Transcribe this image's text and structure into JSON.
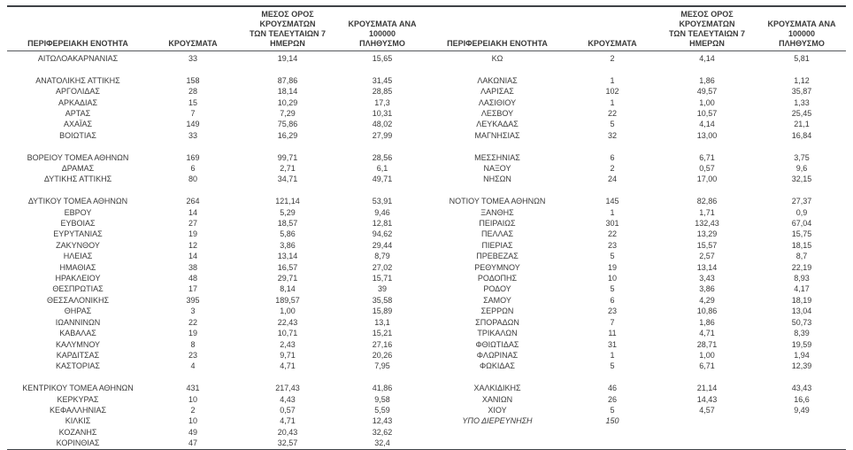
{
  "page": {
    "background": "#ffffff",
    "text_color": "#3a3a3a",
    "border_color": "#3f4247"
  },
  "table": {
    "headers": {
      "region": "ΠΕΡΙΦΕΡΕΙΑΚΗ ΕΝΟΤΗΤΑ",
      "cases": "ΚΡΟΥΣΜΑΤΑ",
      "avg7": "ΜΕΣΟΣ ΟΡΟΣ ΚΡΟΥΣΜΑΤΩΝ\nΤΩΝ ΤΕΛΕΥΤΑΙΩΝ 7\nΗΜΕΡΩΝ",
      "per100k": "ΚΡΟΥΣΜΑΤΑ ΑΝΑ 100000\nΠΛΗΘΥΣΜΟ"
    },
    "rows": [
      {
        "l": [
          "ΑΙΤΩΛΟΑΚΑΡΝΑΝΙΑΣ",
          "33",
          "19,14",
          "15,65"
        ],
        "r": [
          "ΚΩ",
          "2",
          "4,14",
          "5,81"
        ]
      },
      {
        "l": null,
        "r": null
      },
      {
        "l": [
          "ΑΝΑΤΟΛΙΚΗΣ ΑΤΤΙΚΗΣ",
          "158",
          "87,86",
          "31,45"
        ],
        "r": [
          "ΛΑΚΩΝΙΑΣ",
          "1",
          "1,86",
          "1,12"
        ]
      },
      {
        "l": [
          "ΑΡΓΟΛΙΔΑΣ",
          "28",
          "18,14",
          "28,85"
        ],
        "r": [
          "ΛΑΡΙΣΑΣ",
          "102",
          "49,57",
          "35,87"
        ]
      },
      {
        "l": [
          "ΑΡΚΑΔΙΑΣ",
          "15",
          "10,29",
          "17,3"
        ],
        "r": [
          "ΛΑΣΙΘΙΟΥ",
          "1",
          "1,00",
          "1,33"
        ]
      },
      {
        "l": [
          "ΑΡΤΑΣ",
          "7",
          "7,29",
          "10,31"
        ],
        "r": [
          "ΛΕΣΒΟΥ",
          "22",
          "10,57",
          "25,45"
        ]
      },
      {
        "l": [
          "ΑΧΑΪΑΣ",
          "149",
          "75,86",
          "48,02"
        ],
        "r": [
          "ΛΕΥΚΑΔΑΣ",
          "5",
          "4,14",
          "21,1"
        ]
      },
      {
        "l": [
          "ΒΟΙΩΤΙΑΣ",
          "33",
          "16,29",
          "27,99"
        ],
        "r": [
          "ΜΑΓΝΗΣΙΑΣ",
          "32",
          "13,00",
          "16,84"
        ]
      },
      {
        "l": null,
        "r": null
      },
      {
        "l": [
          "ΒΟΡΕΙΟΥ ΤΟΜΕΑ ΑΘΗΝΩΝ",
          "169",
          "99,71",
          "28,56"
        ],
        "r": [
          "ΜΕΣΣΗΝΙΑΣ",
          "6",
          "6,71",
          "3,75"
        ]
      },
      {
        "l": [
          "ΔΡΑΜΑΣ",
          "6",
          "2,71",
          "6,1"
        ],
        "r": [
          "ΝΑΞΟΥ",
          "2",
          "0,57",
          "9,6"
        ]
      },
      {
        "l": [
          "ΔΥΤΙΚΗΣ ΑΤΤΙΚΗΣ",
          "80",
          "34,71",
          "49,71"
        ],
        "r": [
          "ΝΗΣΩΝ",
          "24",
          "17,00",
          "32,15"
        ]
      },
      {
        "l": null,
        "r": null
      },
      {
        "l": [
          "ΔΥΤΙΚΟΥ ΤΟΜΕΑ ΑΘΗΝΩΝ",
          "264",
          "121,14",
          "53,91"
        ],
        "r": [
          "ΝΟΤΙΟΥ ΤΟΜΕΑ ΑΘΗΝΩΝ",
          "145",
          "82,86",
          "27,37"
        ]
      },
      {
        "l": [
          "ΕΒΡΟΥ",
          "14",
          "5,29",
          "9,46"
        ],
        "r": [
          "ΞΑΝΘΗΣ",
          "1",
          "1,71",
          "0,9"
        ]
      },
      {
        "l": [
          "ΕΥΒΟΙΑΣ",
          "27",
          "18,57",
          "12,81"
        ],
        "r": [
          "ΠΕΙΡΑΙΩΣ",
          "301",
          "132,43",
          "67,04"
        ]
      },
      {
        "l": [
          "ΕΥΡΥΤΑΝΙΑΣ",
          "19",
          "5,86",
          "94,62"
        ],
        "r": [
          "ΠΕΛΛΑΣ",
          "22",
          "13,29",
          "15,75"
        ]
      },
      {
        "l": [
          "ΖΑΚΥΝΘΟΥ",
          "12",
          "3,86",
          "29,44"
        ],
        "r": [
          "ΠΙΕΡΙΑΣ",
          "23",
          "15,57",
          "18,15"
        ]
      },
      {
        "l": [
          "ΗΛΕΙΑΣ",
          "14",
          "13,14",
          "8,79"
        ],
        "r": [
          "ΠΡΕΒΕΖΑΣ",
          "5",
          "2,57",
          "8,7"
        ]
      },
      {
        "l": [
          "ΗΜΑΘΙΑΣ",
          "38",
          "16,57",
          "27,02"
        ],
        "r": [
          "ΡΕΘΥΜΝΟΥ",
          "19",
          "13,14",
          "22,19"
        ]
      },
      {
        "l": [
          "ΗΡΑΚΛΕΙΟΥ",
          "48",
          "29,71",
          "15,71"
        ],
        "r": [
          "ΡΟΔΟΠΗΣ",
          "10",
          "3,43",
          "8,93"
        ]
      },
      {
        "l": [
          "ΘΕΣΠΡΩΤΙΑΣ",
          "17",
          "8,14",
          "39"
        ],
        "r": [
          "ΡΟΔΟΥ",
          "5",
          "3,86",
          "4,17"
        ]
      },
      {
        "l": [
          "ΘΕΣΣΑΛΟΝΙΚΗΣ",
          "395",
          "189,57",
          "35,58"
        ],
        "r": [
          "ΣΑΜΟΥ",
          "6",
          "4,29",
          "18,19"
        ]
      },
      {
        "l": [
          "ΘΗΡΑΣ",
          "3",
          "1,00",
          "15,89"
        ],
        "r": [
          "ΣΕΡΡΩΝ",
          "23",
          "10,86",
          "13,04"
        ]
      },
      {
        "l": [
          "ΙΩΑΝΝΙΝΩΝ",
          "22",
          "22,43",
          "13,1"
        ],
        "r": [
          "ΣΠΟΡΑΔΩΝ",
          "7",
          "1,86",
          "50,73"
        ]
      },
      {
        "l": [
          "ΚΑΒΑΛΑΣ",
          "19",
          "10,71",
          "15,21"
        ],
        "r": [
          "ΤΡΙΚΑΛΩΝ",
          "11",
          "4,71",
          "8,39"
        ]
      },
      {
        "l": [
          "ΚΑΛΥΜΝΟΥ",
          "8",
          "2,43",
          "27,16"
        ],
        "r": [
          "ΦΘΙΩΤΙΔΑΣ",
          "31",
          "28,71",
          "19,59"
        ]
      },
      {
        "l": [
          "ΚΑΡΔΙΤΣΑΣ",
          "23",
          "9,71",
          "20,26"
        ],
        "r": [
          "ΦΛΩΡΙΝΑΣ",
          "1",
          "1,00",
          "1,94"
        ]
      },
      {
        "l": [
          "ΚΑΣΤΟΡΙΑΣ",
          "4",
          "4,71",
          "7,95"
        ],
        "r": [
          "ΦΩΚΙΔΑΣ",
          "5",
          "6,71",
          "12,39"
        ]
      },
      {
        "l": null,
        "r": null
      },
      {
        "l": [
          "ΚΕΝΤΡΙΚΟΥ ΤΟΜΕΑ ΑΘΗΝΩΝ",
          "431",
          "217,43",
          "41,86"
        ],
        "r": [
          "ΧΑΛΚΙΔΙΚΗΣ",
          "46",
          "21,14",
          "43,43"
        ]
      },
      {
        "l": [
          "ΚΕΡΚΥΡΑΣ",
          "10",
          "4,43",
          "9,58"
        ],
        "r": [
          "ΧΑΝΙΩΝ",
          "26",
          "14,43",
          "16,6"
        ]
      },
      {
        "l": [
          "ΚΕΦΑΛΛΗΝΙΑΣ",
          "2",
          "0,57",
          "5,59"
        ],
        "r": [
          "ΧΙΟΥ",
          "5",
          "4,57",
          "9,49"
        ]
      },
      {
        "l": [
          "ΚΙΛΚΙΣ",
          "10",
          "4,71",
          "12,43"
        ],
        "r": [
          "ΥΠΟ ΔΙΕΡΕΥΝΗΣΗ",
          "150",
          "",
          ""
        ],
        "r_italic": true
      },
      {
        "l": [
          "ΚΟΖΑΝΗΣ",
          "49",
          "20,43",
          "32,62"
        ],
        "r": null
      },
      {
        "l": [
          "ΚΟΡΙΝΘΙΑΣ",
          "47",
          "32,57",
          "32,4"
        ],
        "r": null
      }
    ]
  }
}
